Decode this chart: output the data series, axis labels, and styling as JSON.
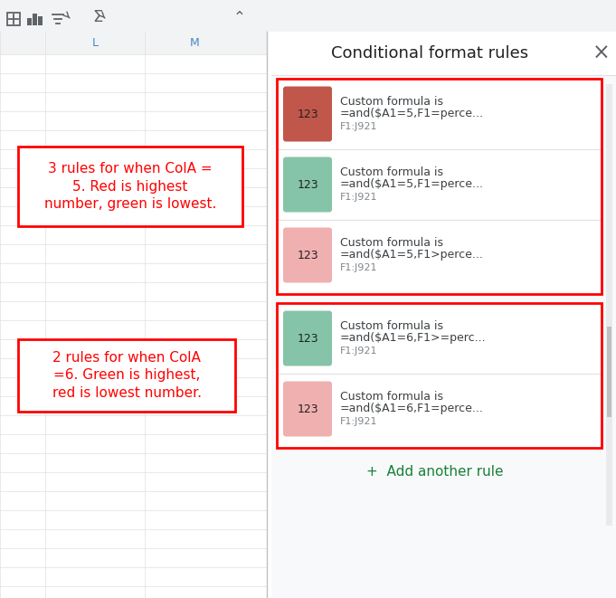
{
  "title_text": "Conditional format rules",
  "title_fontsize": 13,
  "toolbar_bg": "#f1f3f4",
  "spreadsheet_line_color": "#e0e0e0",
  "col_label_color": "#4a86c8",
  "sidebar_bg": "#f8f9fa",
  "close_color": "#5f6368",
  "divider_color": "#e0e0e0",
  "scrollbar_track": "#e8eaed",
  "scrollbar_thumb": "#c0c0c0",
  "rules_group1": {
    "label": "3 rules for when ColA =\n5. Red is highest\nnumber, green is lowest.",
    "label_color": "#ff0000",
    "box_border_color": "#ff0000",
    "rules": [
      {
        "color": "#c0574a",
        "text1": "Custom formula is",
        "text2": "=and($A1=5,F1=perce...",
        "text3": "F1:J921"
      },
      {
        "color": "#85c4a8",
        "text1": "Custom formula is",
        "text2": "=and($A1=5,F1=perce...",
        "text3": "F1:J921"
      },
      {
        "color": "#f0b0b0",
        "text1": "Custom formula is",
        "text2": "=and($A1=5,F1>perce...",
        "text3": "F1:J921"
      }
    ]
  },
  "rules_group2": {
    "label": "2 rules for when ColA\n=6. Green is highest,\nred is lowest number.",
    "label_color": "#ff0000",
    "box_border_color": "#ff0000",
    "rules": [
      {
        "color": "#85c4a8",
        "text1": "Custom formula is",
        "text2": "=and($A1=6,F1>=perc...",
        "text3": "F1:J921"
      },
      {
        "color": "#f0b0b0",
        "text1": "Custom formula is",
        "text2": "=and($A1=6,F1=perce...",
        "text3": "F1:J921"
      }
    ]
  },
  "add_rule_text": "+  Add another rule",
  "add_rule_color": "#188038"
}
